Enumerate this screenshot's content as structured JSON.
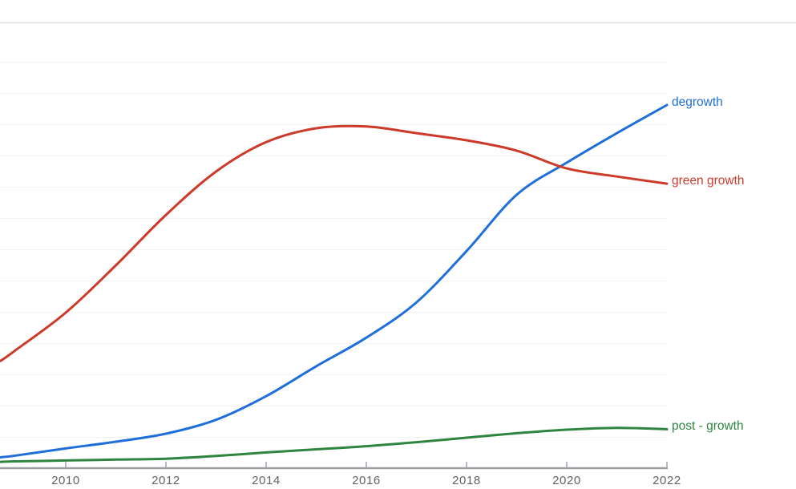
{
  "page": {
    "background": "#ffffff",
    "axis_color": "#9aa0a6",
    "top_border_color": "#dadce0",
    "grid_color": "#f1f3f4",
    "tick_label_color": "#5f6368"
  },
  "chart_data": {
    "type": "line",
    "title": "",
    "xlabel": "",
    "ylabel": "",
    "x_axis": {
      "tick_labels": [
        "2010",
        "2012",
        "2014",
        "2016",
        "2018",
        "2020",
        "2022"
      ],
      "tick_years": [
        2010,
        2012,
        2014,
        2016,
        2018,
        2020,
        2022
      ],
      "range": [
        2008.69,
        2022
      ]
    },
    "y_axis": {
      "visible": false,
      "range": [
        0,
        100
      ],
      "note": "no y tick labels shown; values are relative (percent of plot height)"
    },
    "grid": {
      "horizontal": true,
      "vertical": false
    },
    "legend_position": "line-end-labels-right",
    "x": [
      2008.7,
      2009,
      2010,
      2011,
      2012,
      2013,
      2014,
      2015,
      2016,
      2017,
      2018,
      2019,
      2020,
      2021,
      2022
    ],
    "series": [
      {
        "name": "degrowth",
        "label": "degrowth",
        "color": "#1f6fdb",
        "values": [
          2.6,
          3.0,
          4.6,
          6.1,
          7.9,
          11.0,
          16.3,
          23.0,
          29.4,
          37.3,
          48.8,
          61.4,
          68.6,
          75.2,
          81.5
        ]
      },
      {
        "name": "green growth",
        "label": "green growth",
        "color": "#cd3a2a",
        "values": [
          24.2,
          26.6,
          35.0,
          45.6,
          56.9,
          66.6,
          73.2,
          76.3,
          76.7,
          75.2,
          73.6,
          71.3,
          67.3,
          65.5,
          63.9
        ]
      },
      {
        "name": "post - growth",
        "label": "post - growth",
        "color": "#2e8540",
        "values": [
          1.6,
          1.7,
          1.9,
          2.1,
          2.3,
          2.9,
          3.7,
          4.4,
          5.1,
          6.0,
          7.0,
          8.0,
          8.8,
          9.2,
          8.9
        ]
      }
    ]
  }
}
